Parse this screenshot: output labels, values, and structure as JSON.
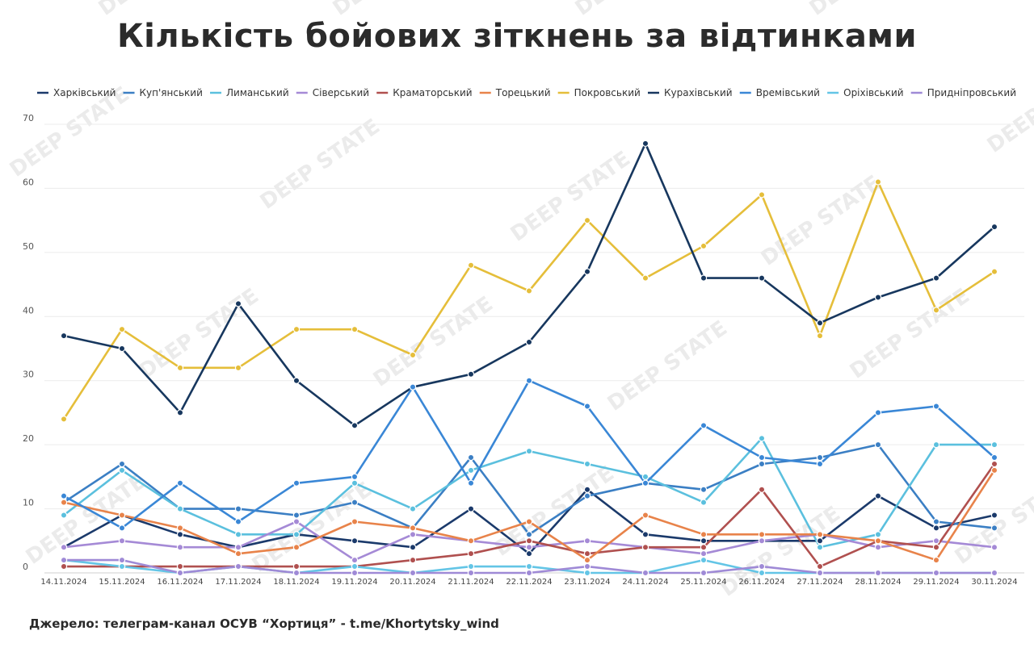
{
  "title": "Кількість бойових зіткнень за відтинками",
  "source": "Джерело: телеграм-канал ОСУВ “Хортиця” - t.me/Khortytsky_wind",
  "watermark": "DEEP STATE",
  "chart_data": {
    "type": "line",
    "title": "Кількість бойових зіткнень за відтинками",
    "xlabel": "",
    "ylabel": "",
    "ylim": [
      0,
      70
    ],
    "yticks": [
      0,
      10,
      20,
      30,
      40,
      50,
      60,
      70
    ],
    "grid": true,
    "legend_position": "top",
    "x": [
      "14.11.2024",
      "15.11.2024",
      "16.11.2024",
      "17.11.2024",
      "18.11.2024",
      "19.11.2024",
      "20.11.2024",
      "21.11.2024",
      "22.11.2024",
      "23.11.2024",
      "24.11.2024",
      "25.11.2024",
      "26.11.2024",
      "27.11.2024",
      "28.11.2024",
      "29.11.2024",
      "30.11.2024"
    ],
    "series": [
      {
        "name": "Харківський",
        "color": "#1b3a6b",
        "values": [
          4,
          9,
          6,
          4,
          6,
          5,
          4,
          10,
          3,
          13,
          6,
          5,
          5,
          5,
          12,
          7,
          9
        ]
      },
      {
        "name": "Куп'янський",
        "color": "#3b7fc4",
        "values": [
          11,
          17,
          10,
          10,
          9,
          11,
          7,
          18,
          6,
          12,
          14,
          13,
          17,
          18,
          20,
          8,
          7
        ]
      },
      {
        "name": "Лиманський",
        "color": "#5bc0de",
        "values": [
          9,
          16,
          10,
          6,
          6,
          14,
          10,
          16,
          19,
          17,
          15,
          11,
          21,
          4,
          6,
          20,
          20
        ]
      },
      {
        "name": "Сіверський",
        "color": "#a58ad6",
        "values": [
          4,
          5,
          4,
          4,
          8,
          2,
          6,
          5,
          4,
          5,
          4,
          3,
          5,
          6,
          4,
          5,
          4
        ]
      },
      {
        "name": "Краматорський",
        "color": "#b0504f",
        "values": [
          1,
          1,
          1,
          1,
          1,
          1,
          2,
          3,
          5,
          3,
          4,
          4,
          13,
          1,
          5,
          4,
          17
        ]
      },
      {
        "name": "Торецький",
        "color": "#e8834a",
        "values": [
          11,
          9,
          7,
          3,
          4,
          8,
          7,
          5,
          8,
          2,
          9,
          6,
          6,
          6,
          5,
          2,
          16
        ]
      },
      {
        "name": "Покровський",
        "color": "#e5be3a",
        "values": [
          24,
          38,
          32,
          32,
          38,
          38,
          34,
          48,
          44,
          55,
          46,
          51,
          59,
          37,
          61,
          41,
          47
        ]
      },
      {
        "name": "Курахівський",
        "color": "#17375e",
        "values": [
          37,
          35,
          25,
          42,
          30,
          23,
          29,
          31,
          36,
          47,
          67,
          46,
          46,
          39,
          43,
          46,
          54
        ]
      },
      {
        "name": "Времівський",
        "color": "#3a87d6",
        "values": [
          12,
          7,
          14,
          8,
          14,
          15,
          29,
          14,
          30,
          26,
          14,
          23,
          18,
          17,
          25,
          26,
          18
        ]
      },
      {
        "name": "Оріхівський",
        "color": "#63c5e6",
        "values": [
          2,
          1,
          0,
          1,
          0,
          1,
          0,
          1,
          1,
          0,
          0,
          2,
          0,
          0,
          0,
          0,
          0
        ]
      },
      {
        "name": "Придніпровський",
        "color": "#9f8ad6",
        "values": [
          2,
          2,
          0,
          1,
          0,
          0,
          0,
          0,
          0,
          1,
          0,
          0,
          1,
          0,
          0,
          0,
          0
        ]
      }
    ]
  }
}
